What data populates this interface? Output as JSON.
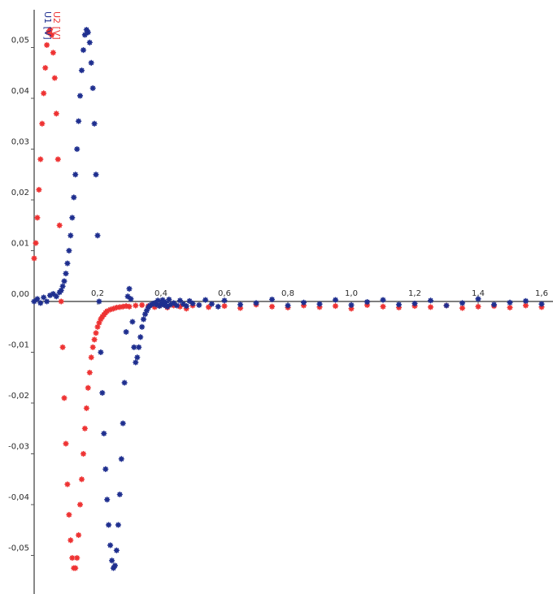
{
  "chart_data": {
    "type": "scatter",
    "xlim": [
      -0.01,
      1.66
    ],
    "ylim": [
      -0.058,
      0.058
    ],
    "x_ticks": [
      0.2,
      0.4,
      0.6,
      0.8,
      1.0,
      1.2,
      1.4,
      1.6
    ],
    "x_tick_labels": [
      "0,2",
      "0,4",
      "0,6",
      "0,8",
      "1,0",
      "1,2",
      "1,4",
      "1,6"
    ],
    "y_ticks": [
      0.05,
      0.04,
      0.03,
      0.02,
      0.01,
      0.0,
      -0.01,
      -0.02,
      -0.03,
      -0.04,
      -0.05
    ],
    "y_tick_labels": [
      "0,05",
      "0,04",
      "0,03",
      "0,02",
      "0,01",
      "0,00",
      "-0,01",
      "-0,02",
      "-0,03",
      "-0,04",
      "-0,05"
    ],
    "legend": [
      "U1 [V]",
      "U2 [V]"
    ],
    "grid": false,
    "series": [
      {
        "name": "U2 [V]",
        "color": "#ee3333",
        "markers": "asterisk",
        "x": [
          0.0,
          0.005,
          0.01,
          0.015,
          0.02,
          0.025,
          0.03,
          0.035,
          0.04,
          0.045,
          0.05,
          0.055,
          0.06,
          0.065,
          0.07,
          0.075,
          0.08,
          0.085,
          0.09,
          0.095,
          0.1,
          0.105,
          0.11,
          0.115,
          0.12,
          0.125,
          0.13,
          0.135,
          0.14,
          0.145,
          0.15,
          0.155,
          0.16,
          0.165,
          0.17,
          0.175,
          0.18,
          0.185,
          0.19,
          0.195,
          0.2,
          0.205,
          0.21,
          0.215,
          0.22,
          0.225,
          0.23,
          0.24,
          0.25,
          0.26,
          0.27,
          0.28,
          0.29,
          0.3,
          0.32,
          0.34,
          0.36,
          0.38,
          0.4,
          0.42,
          0.44,
          0.46,
          0.48,
          0.5,
          0.55,
          0.6,
          0.65,
          0.7,
          0.75,
          0.8,
          0.85,
          0.9,
          0.95,
          1.0,
          1.05,
          1.1,
          1.15,
          1.2,
          1.25,
          1.3,
          1.35,
          1.4,
          1.45,
          1.5,
          1.55,
          1.6,
          1.65
        ],
        "y": [
          0.0085,
          0.0115,
          0.0165,
          0.022,
          0.028,
          0.035,
          0.041,
          0.046,
          0.0505,
          0.053,
          0.0535,
          0.0525,
          0.049,
          0.044,
          0.037,
          0.028,
          0.015,
          0.0,
          -0.009,
          -0.019,
          -0.028,
          -0.036,
          -0.042,
          -0.047,
          -0.0505,
          -0.0525,
          -0.0525,
          -0.0505,
          -0.046,
          -0.04,
          -0.035,
          -0.03,
          -0.025,
          -0.021,
          -0.017,
          -0.014,
          -0.011,
          -0.009,
          -0.0075,
          -0.0062,
          -0.005,
          -0.0042,
          -0.0035,
          -0.003,
          -0.0026,
          -0.0022,
          -0.0019,
          -0.0016,
          -0.0014,
          -0.0012,
          -0.0011,
          -0.001,
          -0.0009,
          -0.001,
          -0.0008,
          -0.0007,
          -0.0009,
          -0.0011,
          -0.0006,
          -0.0012,
          -0.0008,
          -0.001,
          -0.0014,
          -0.0008,
          -0.0011,
          -0.0009,
          -0.0013,
          -0.0006,
          -0.001,
          -0.0012,
          -0.0008,
          -0.0011,
          -0.0009,
          -0.0014,
          -0.0007,
          -0.001,
          -0.0012,
          -0.0009,
          -0.0011,
          -0.0008,
          -0.0013,
          -0.001,
          -0.0009,
          -0.0012,
          -0.0008,
          -0.0011,
          -0.001
        ]
      },
      {
        "name": "U1 [V]",
        "color": "#1f2f8f",
        "markers": "asterisk",
        "x": [
          0.0,
          0.01,
          0.02,
          0.03,
          0.04,
          0.05,
          0.06,
          0.07,
          0.08,
          0.085,
          0.09,
          0.095,
          0.1,
          0.105,
          0.11,
          0.115,
          0.12,
          0.125,
          0.13,
          0.135,
          0.14,
          0.145,
          0.15,
          0.155,
          0.16,
          0.165,
          0.17,
          0.175,
          0.18,
          0.185,
          0.19,
          0.195,
          0.2,
          0.205,
          0.21,
          0.215,
          0.22,
          0.225,
          0.23,
          0.235,
          0.24,
          0.245,
          0.25,
          0.255,
          0.26,
          0.265,
          0.27,
          0.275,
          0.28,
          0.285,
          0.29,
          0.295,
          0.3,
          0.305,
          0.31,
          0.315,
          0.32,
          0.325,
          0.33,
          0.335,
          0.34,
          0.345,
          0.35,
          0.355,
          0.36,
          0.365,
          0.37,
          0.375,
          0.38,
          0.385,
          0.39,
          0.395,
          0.4,
          0.405,
          0.41,
          0.415,
          0.42,
          0.425,
          0.43,
          0.44,
          0.45,
          0.46,
          0.47,
          0.48,
          0.49,
          0.5,
          0.52,
          0.54,
          0.56,
          0.58,
          0.6,
          0.65,
          0.7,
          0.75,
          0.8,
          0.85,
          0.9,
          0.95,
          1.0,
          1.05,
          1.1,
          1.15,
          1.2,
          1.25,
          1.3,
          1.35,
          1.4,
          1.45,
          1.5,
          1.55,
          1.6,
          1.65
        ],
        "y": [
          0.0,
          0.0005,
          -0.0003,
          0.0008,
          0.0,
          0.0012,
          0.0015,
          0.001,
          0.0018,
          0.0022,
          0.003,
          0.004,
          0.0055,
          0.0075,
          0.01,
          0.013,
          0.0165,
          0.0205,
          0.025,
          0.03,
          0.0355,
          0.0405,
          0.0455,
          0.0495,
          0.0525,
          0.0535,
          0.053,
          0.051,
          0.047,
          0.042,
          0.035,
          0.025,
          0.013,
          0.0,
          -0.01,
          -0.018,
          -0.026,
          -0.033,
          -0.039,
          -0.044,
          -0.048,
          -0.051,
          -0.0525,
          -0.052,
          -0.049,
          -0.044,
          -0.038,
          -0.031,
          -0.024,
          -0.016,
          -0.006,
          0.001,
          0.0025,
          0.0005,
          -0.004,
          -0.009,
          -0.012,
          -0.011,
          -0.009,
          -0.007,
          -0.005,
          -0.0035,
          -0.0025,
          -0.0018,
          -0.0012,
          -0.0008,
          -0.0006,
          -0.0004,
          -0.0003,
          -0.0006,
          0.0002,
          -0.0009,
          -0.0004,
          0.0003,
          -0.0007,
          -0.0002,
          -0.001,
          0.0004,
          -0.0006,
          -0.0003,
          -0.0008,
          0.0002,
          -0.0005,
          -0.0009,
          0.0001,
          -0.0004,
          -0.0007,
          0.0003,
          -0.0005,
          -0.001,
          0.0002,
          -0.0006,
          -0.0003,
          0.0004,
          -0.0008,
          -0.0002,
          -0.0005,
          0.0003,
          -0.0007,
          -0.0001,
          0.0003,
          -0.0006,
          -0.0004,
          0.0002,
          -0.0008,
          -0.0003,
          0.0005,
          -0.0006,
          -0.0002,
          0.0001,
          -0.0005,
          -0.0003
        ]
      }
    ]
  }
}
